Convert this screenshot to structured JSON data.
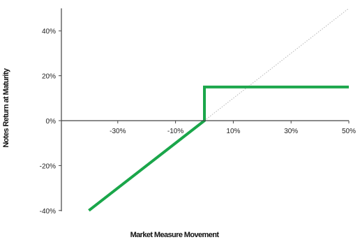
{
  "chart_data": {
    "type": "line",
    "title": "",
    "xlabel": "Market Measure Movement",
    "ylabel": "Notes Return at Maturity",
    "xlim": [
      -50,
      50
    ],
    "ylim": [
      -40,
      50
    ],
    "x_ticks": [
      {
        "value": -30,
        "label": "-30%"
      },
      {
        "value": -10,
        "label": "-10%"
      },
      {
        "value": 10,
        "label": "10%"
      },
      {
        "value": 30,
        "label": "30%"
      },
      {
        "value": 50,
        "label": "50%"
      }
    ],
    "y_ticks": [
      {
        "value": 40,
        "label": "40%"
      },
      {
        "value": 20,
        "label": "20%"
      },
      {
        "value": 0,
        "label": "0%"
      },
      {
        "value": -20,
        "label": "-20%"
      },
      {
        "value": -40,
        "label": "-40%"
      }
    ],
    "grid": false,
    "legend": "none",
    "series": [
      {
        "color": "#1aa64a",
        "style": "solid",
        "points": [
          [
            -40,
            -40
          ],
          [
            0,
            0
          ],
          [
            0,
            15
          ],
          [
            50,
            15
          ]
        ]
      },
      {
        "color": "#b5b5b5",
        "style": "dotted",
        "points": [
          [
            0,
            0
          ],
          [
            50,
            50
          ]
        ]
      }
    ]
  }
}
